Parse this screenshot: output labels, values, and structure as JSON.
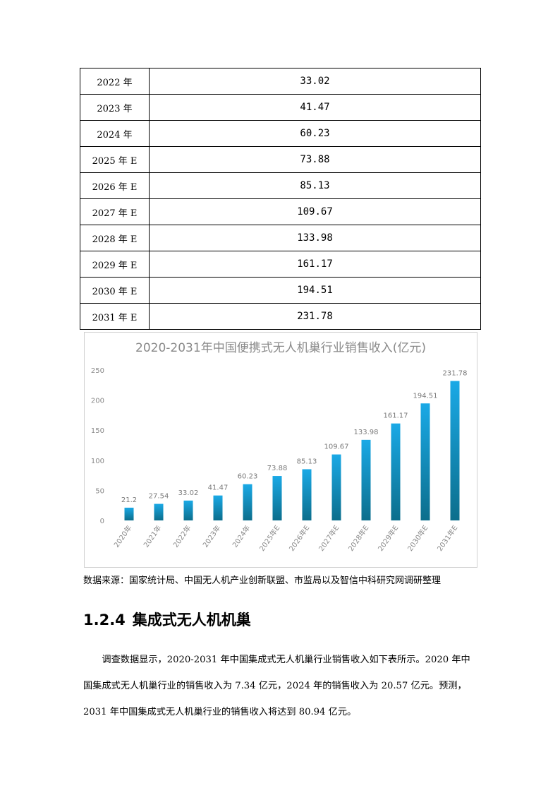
{
  "table": {
    "rows": [
      {
        "year": "2022 年",
        "value": "33.02"
      },
      {
        "year": "2023 年",
        "value": "41.47"
      },
      {
        "year": "2024 年",
        "value": "60.23"
      },
      {
        "year": "2025 年 E",
        "value": "73.88"
      },
      {
        "year": "2026 年 E",
        "value": "85.13"
      },
      {
        "year": "2027 年 E",
        "value": "109.67"
      },
      {
        "year": "2028 年 E",
        "value": "133.98"
      },
      {
        "year": "2029 年 E",
        "value": "161.17"
      },
      {
        "year": "2030 年 E",
        "value": "194.51"
      },
      {
        "year": "2031 年 E",
        "value": "231.78"
      }
    ]
  },
  "chart_data": {
    "type": "bar",
    "title": "2020-2031年中国便携式无人机巢行业销售收入(亿元)",
    "categories": [
      "2020年",
      "2021年",
      "2022年",
      "2023年",
      "2024年",
      "2025年E",
      "2026年E",
      "2027年E",
      "2028年E",
      "2029年E",
      "2030年E",
      "2031年E"
    ],
    "values": [
      21.2,
      27.54,
      33.02,
      41.47,
      60.23,
      73.88,
      85.13,
      109.67,
      133.98,
      161.17,
      194.51,
      231.78
    ],
    "data_labels": [
      "21.2",
      "27.54",
      "33.02",
      "41.47",
      "60.23",
      "73.88",
      "85.13",
      "109.67",
      "133.98",
      "161.17",
      "194.51",
      "231.78"
    ],
    "yticks": [
      "0",
      "50",
      "100",
      "150",
      "200",
      "250"
    ],
    "ylim": [
      0,
      250
    ],
    "grid": false,
    "bar_color_top": "#1aa9e6",
    "bar_color_bottom": "#0c6e8c"
  },
  "source_note": "数据来源：国家统计局、中国无人机产业创新联盟、市监局以及智信中科研究网调研整理",
  "section": {
    "number": "1.2.4",
    "title": "集成式无人机机巢"
  },
  "paragraph": "调查数据显示，2020-2031 年中国集成式无人机巢行业销售收入如下表所示。2020 年中国集成式无人机巢行业的销售收入为 7.34 亿元，2024 年的销售收入为 20.57 亿元。预测，2031 年中国集成式无人机巢行业的销售收入将达到 80.94 亿元。"
}
